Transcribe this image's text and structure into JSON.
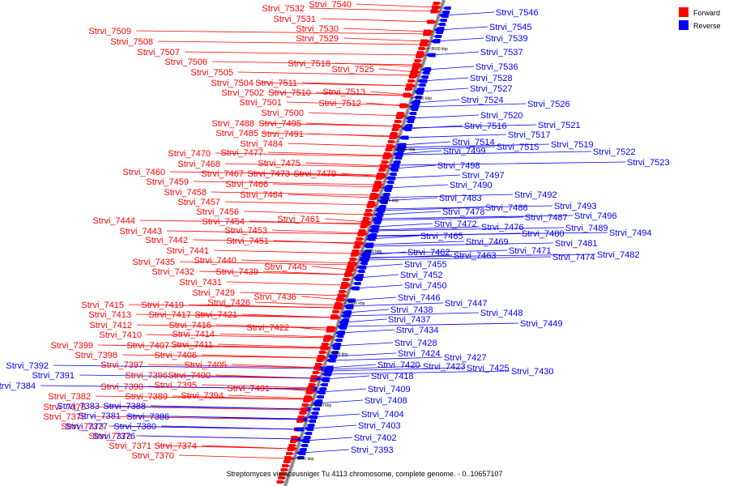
{
  "caption": "Streptomyces violaceusniger Tu 4113 chromosome, complete genome. - 0..10657107",
  "legend": [
    {
      "label": "Forward",
      "color": "#ff0000"
    },
    {
      "label": "Reverse",
      "color": "#0000ff"
    }
  ],
  "colors": {
    "forward": "#ff0000",
    "reverse": "#0000ff",
    "backbone": "#808080"
  },
  "ticks": [
    "8440 kbp",
    "8460 kbp",
    "8480 kbp",
    "8500 kbp",
    "8520 kbp",
    "8540 kbp",
    "8560 kbp",
    "8580 kbp",
    "8600 kbp"
  ],
  "forward_genes": [
    "Strvi_7540",
    "Strvi_7532",
    "Strvi_7531",
    "Strvi_7530",
    "Strvi_7529",
    "Strvi_7509",
    "Strvi_7508",
    "Strvi_7507",
    "Strvi_7518",
    "Strvi_7506",
    "Strvi_7525",
    "Strvi_7505",
    "Strvi_7504",
    "Strvi_7511",
    "Strvi_7502",
    "Strvi_7510",
    "Strvi_7513",
    "Strvi_7501",
    "Strvi_7512",
    "Strvi_7500",
    "Strvi_7488",
    "Strvi_7495",
    "Strvi_7485",
    "Strvi_7491",
    "Strvi_7484",
    "Strvi_7470",
    "Strvi_7477",
    "Strvi_7468",
    "Strvi_7475",
    "Strvi_7467",
    "Strvi_7473",
    "Strvi_7479",
    "Strvi_7460",
    "Strvi_7466",
    "Strvi_7459",
    "Strvi_7464",
    "Strvi_7458",
    "Strvi_7457",
    "Strvi_7456",
    "Strvi_7461",
    "Strvi_7444",
    "Strvi_7454",
    "Strvi_7443",
    "Strvi_7453",
    "Strvi_7442",
    "Strvi_7451",
    "Strvi_7441",
    "Strvi_7435",
    "Strvi_7440",
    "Strvi_7445",
    "Strvi_7432",
    "Strvi_7439",
    "Strvi_7431",
    "Strvi_7429",
    "Strvi_7436",
    "Strvi_7426",
    "Strvi_7415",
    "Strvi_7419",
    "Strvi_7413",
    "Strvi_7417",
    "Strvi_7421",
    "Strvi_7412",
    "Strvi_7416",
    "Strvi_7422",
    "Strvi_7410",
    "Strvi_7414",
    "Strvi_7407",
    "Strvi_7411",
    "Strvi_7399",
    "Strvi_7406",
    "Strvi_7398",
    "Strvi_7397",
    "Strvi_7405",
    "Strvi_7396",
    "Strvi_7400",
    "Strvi_7395",
    "Strvi_7390",
    "Strvi_7401",
    "Strvi_7389",
    "Strvi_7394",
    "Strvi_7382",
    "Strvi_7378",
    "Strvi_7375",
    "Strvi_7373",
    "Strvi_7372",
    "Strvi_7371",
    "Strvi_7374",
    "Strvi_7370"
  ],
  "reverse_genes": [
    "Strvi_7546",
    "Strvi_7545",
    "Strvi_7539",
    "Strvi_7537",
    "Strvi_7536",
    "Strvi_7528",
    "Strvi_7527",
    "Strvi_7524",
    "Strvi_7526",
    "Strvi_7520",
    "Strvi_7516",
    "Strvi_7521",
    "Strvi_7517",
    "Strvi_7514",
    "Strvi_7515",
    "Strvi_7519",
    "Strvi_7499",
    "Strvi_7522",
    "Strvi_7523",
    "Strvi_7498",
    "Strvi_7497",
    "Strvi_7490",
    "Strvi_7492",
    "Strvi_7483",
    "Strvi_7486",
    "Strvi_7493",
    "Strvi_7478",
    "Strvi_7487",
    "Strvi_7496",
    "Strvi_7472",
    "Strvi_7476",
    "Strvi_7489",
    "Strvi_7465",
    "Strvi_7480",
    "Strvi_7494",
    "Strvi_7469",
    "Strvi_7481",
    "Strvi_7462",
    "Strvi_7471",
    "Strvi_7463",
    "Strvi_7474",
    "Strvi_7482",
    "Strvi_7455",
    "Strvi_7452",
    "Strvi_7450",
    "Strvi_7446",
    "Strvi_7447",
    "Strvi_7438",
    "Strvi_7448",
    "Strvi_7437",
    "Strvi_7449",
    "Strvi_7434",
    "Strvi_7428",
    "Strvi_7424",
    "Strvi_7427",
    "Strvi_7420",
    "Strvi_7423",
    "Strvi_7425",
    "Strvi_7430",
    "Strvi_7418",
    "Strvi_7409",
    "Strvi_7408",
    "Strvi_7404",
    "Strvi_7403",
    "Strvi_7402",
    "Strvi_7393",
    "Strvi_7392",
    "Strvi_7391",
    "Strvi_7384",
    "Strvi_7383",
    "Strvi_7388",
    "Strvi_7381",
    "Strvi_7386",
    "Strvi_7377",
    "Strvi_7380",
    "Strvi_7376"
  ]
}
